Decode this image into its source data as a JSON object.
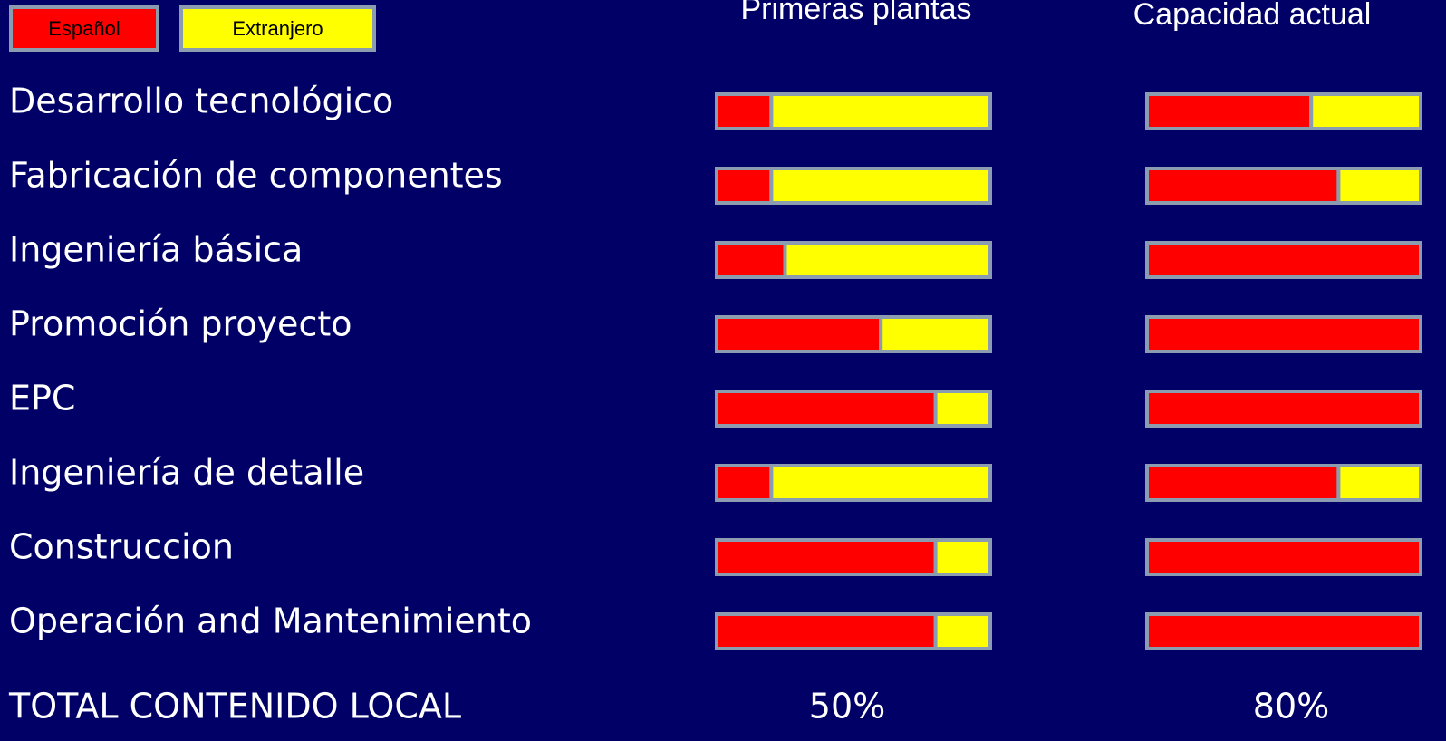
{
  "chart_data": {
    "type": "bar",
    "stacked": true,
    "orientation": "horizontal",
    "categories": [
      "Desarrollo tecnológico",
      "Fabricación de componentes",
      "Ingeniería básica",
      "Promoción proyecto",
      "EPC",
      "Ingeniería de detalle",
      "Construccion",
      "Operación and Mantenimiento"
    ],
    "series": [
      {
        "name": "Español",
        "color": "#ff0000"
      },
      {
        "name": "Extranjero",
        "color": "#ffff00"
      }
    ],
    "xlim": [
      0,
      100
    ],
    "panels": [
      {
        "title": "Primeras plantas",
        "series": [
          {
            "values": [
              20,
              20,
              25,
              60,
              80,
              20,
              80,
              80
            ]
          },
          {
            "values": [
              80,
              80,
              75,
              40,
              20,
              80,
              20,
              20
            ]
          }
        ]
      },
      {
        "title": "Capacidad actual",
        "series": [
          {
            "values": [
              60,
              70,
              100,
              100,
              100,
              70,
              100,
              100
            ]
          },
          {
            "values": [
              40,
              30,
              0,
              0,
              0,
              30,
              0,
              0
            ]
          }
        ]
      }
    ],
    "total_title": "TOTAL CONTENIDO LOCAL",
    "totals": [
      50,
      80
    ],
    "total_labels": [
      "50%",
      "80%"
    ]
  }
}
